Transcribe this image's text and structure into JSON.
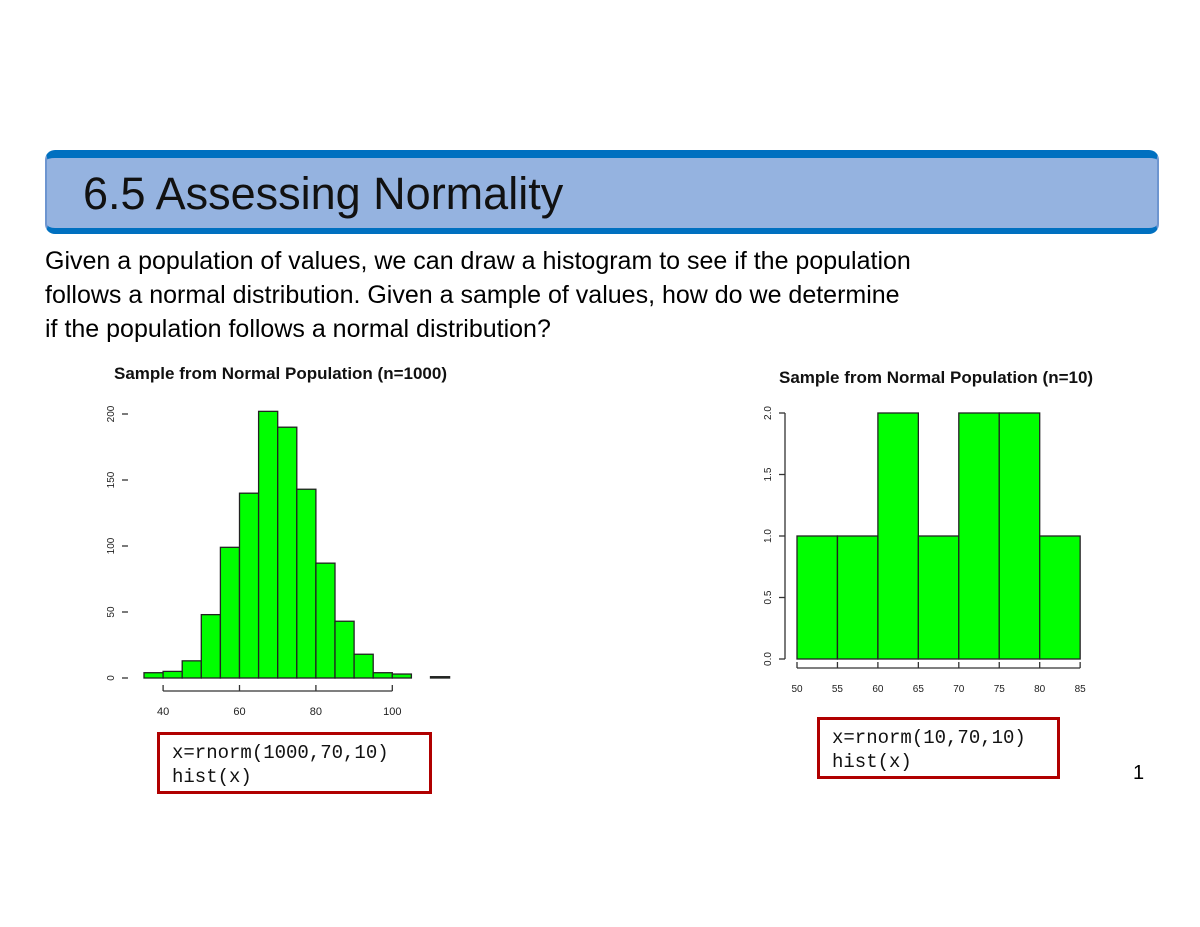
{
  "slide": {
    "title": "6.5 Assessing Normality",
    "body_lines": [
      "Given a population of values, we can draw a histogram to see if the population",
      "follows a normal distribution.  Given a sample of values, how do we determine",
      "if the population follows a normal distribution?"
    ],
    "page_number": "1",
    "colors": {
      "title_fill": "#95b3e0",
      "title_border": "#0070c0",
      "bar_fill": "#00ff00",
      "code_border": "#b00000"
    }
  },
  "code_boxes": [
    {
      "line1": "x=rnorm(1000,70,10)",
      "line2": "hist(x)"
    },
    {
      "line1": "x=rnorm(10,70,10)",
      "line2": "hist(x)"
    }
  ],
  "chart_data": [
    {
      "type": "bar",
      "title": "Sample from Normal Population (n=1000)",
      "xlabel": "",
      "ylabel": "",
      "bin_width": 5,
      "categories": [
        "35-40",
        "40-45",
        "45-50",
        "50-55",
        "55-60",
        "60-65",
        "65-70",
        "70-75",
        "75-80",
        "80-85",
        "85-90",
        "90-95",
        "95-100",
        "100-105",
        "105-110",
        "110-115"
      ],
      "bin_starts": [
        35,
        40,
        45,
        50,
        55,
        60,
        65,
        70,
        75,
        80,
        85,
        90,
        95,
        100,
        105,
        110
      ],
      "values": [
        4,
        5,
        13,
        48,
        99,
        140,
        202,
        190,
        143,
        87,
        43,
        18,
        4,
        3,
        0,
        1
      ],
      "xticks": [
        40,
        60,
        80,
        100
      ],
      "yticks": [
        0,
        50,
        100,
        150,
        200
      ],
      "xlim": [
        35,
        115
      ],
      "ylim": [
        0,
        200
      ],
      "grid": false,
      "bar_color": "#00ff00"
    },
    {
      "type": "bar",
      "title": "Sample from Normal Population (n=10)",
      "xlabel": "",
      "ylabel": "",
      "bin_width": 5,
      "categories": [
        "50-55",
        "55-60",
        "60-65",
        "65-70",
        "70-75",
        "75-80",
        "80-85"
      ],
      "bin_starts": [
        50,
        55,
        60,
        65,
        70,
        75,
        80
      ],
      "values": [
        1,
        1,
        2,
        1,
        2,
        2,
        1
      ],
      "xticks": [
        50,
        55,
        60,
        65,
        70,
        75,
        80,
        85
      ],
      "yticks": [
        "0.0",
        "0.5",
        "1.0",
        "1.5",
        "2.0"
      ],
      "xlim": [
        50,
        85
      ],
      "ylim": [
        0,
        2
      ],
      "grid": false,
      "bar_color": "#00ff00"
    }
  ]
}
